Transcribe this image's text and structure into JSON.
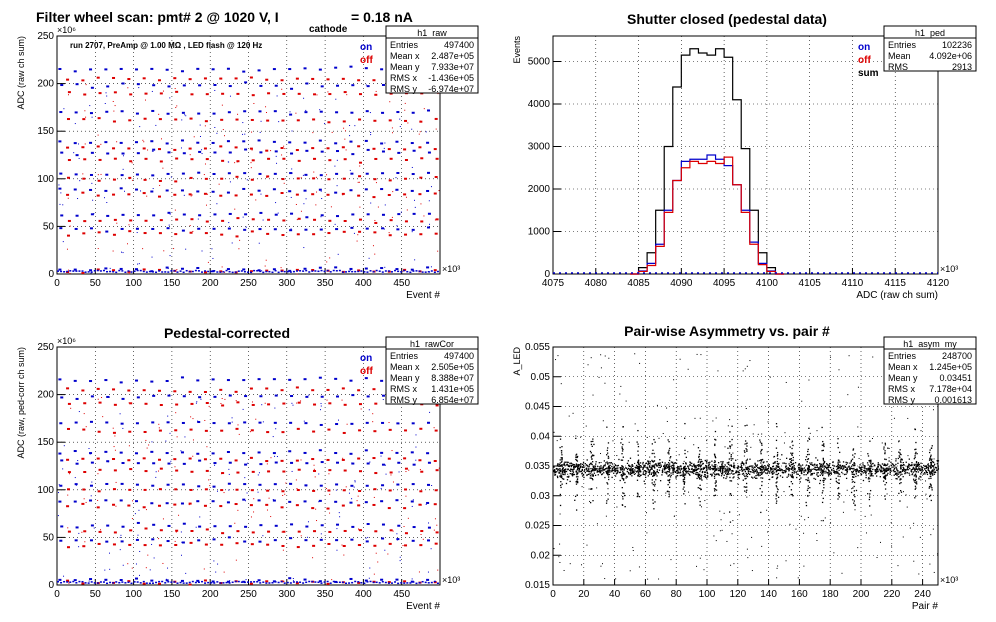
{
  "header": {
    "title_main": "Filter wheel scan: pmt#   2 @  1020 V, I",
    "title_sub": "cathode",
    "title_end": "= 0.18 nA",
    "run_info": "run 2707, PreAmp @ 1.00 MΩ , LED flash @  120 Hz"
  },
  "chart_data": [
    {
      "id": "raw",
      "type": "scatter",
      "title": "",
      "stat_box": {
        "name": "h1_raw",
        "rows": [
          [
            "Entries",
            "497400"
          ],
          [
            "Mean x",
            "2.487e+05"
          ],
          [
            "Mean y",
            "7.933e+07"
          ],
          [
            "RMS x",
            "-1.436e+05"
          ],
          [
            "RMS y",
            "-6.974e+07"
          ]
        ]
      },
      "legend": [
        {
          "name": "on",
          "color": "#0000cc"
        },
        {
          "name": "off",
          "color": "#dd0000"
        }
      ],
      "legend_position": "top-right",
      "xlabel": "Event #",
      "ylabel": "ADC (raw ch sum)",
      "x_multiplier": "×10³",
      "y_multiplier": "×10⁶",
      "xlim": [
        0,
        500000
      ],
      "ylim": [
        0,
        250000000
      ],
      "xticks": [
        0,
        50,
        100,
        150,
        200,
        250,
        300,
        350,
        400,
        450
      ],
      "yticks": [
        0,
        50,
        100,
        150,
        200,
        250
      ],
      "levels_on": [
        5,
        47,
        62,
        88,
        105,
        128,
        139,
        170,
        198,
        215
      ],
      "levels_off": [
        3,
        42,
        56,
        83,
        100,
        120,
        132,
        162,
        190,
        205
      ],
      "block_period": 20000,
      "grid": true
    },
    {
      "id": "ped",
      "type": "line",
      "title": "Shutter closed (pedestal data)",
      "stat_box": {
        "name": "h1_ped",
        "rows": [
          [
            "Entries",
            "102236"
          ],
          [
            "Mean",
            "4.092e+06"
          ],
          [
            "RMS",
            "2913"
          ]
        ]
      },
      "legend": [
        {
          "name": "on",
          "color": "#0000cc"
        },
        {
          "name": "off",
          "color": "#dd0000"
        },
        {
          "name": "sum",
          "color": "#000000"
        }
      ],
      "legend_position": "top-right",
      "xlabel": "ADC (raw ch sum)",
      "ylabel": "Events",
      "x_multiplier": "×10³",
      "xlim": [
        4075,
        4120
      ],
      "ylim": [
        0,
        5600
      ],
      "xticks": [
        4075,
        4080,
        4085,
        4090,
        4095,
        4100,
        4105,
        4110,
        4115,
        4120
      ],
      "yticks": [
        0,
        1000,
        2000,
        3000,
        4000,
        5000
      ],
      "series": [
        {
          "name": "sum",
          "color": "#000000",
          "x": [
            4084,
            4085,
            4086,
            4087,
            4088,
            4089,
            4090,
            4091,
            4092,
            4093,
            4094,
            4095,
            4096,
            4097,
            4098,
            4099,
            4100,
            4101
          ],
          "y": [
            0,
            150,
            500,
            1500,
            3000,
            4400,
            5150,
            5300,
            5200,
            5150,
            5300,
            5100,
            4100,
            2950,
            1500,
            500,
            150,
            0
          ]
        },
        {
          "name": "on",
          "color": "#0000cc",
          "x": [
            4084,
            4085,
            4086,
            4087,
            4088,
            4089,
            4090,
            4091,
            4092,
            4093,
            4094,
            4095,
            4096,
            4097,
            4098,
            4099,
            4100,
            4101
          ],
          "y": [
            0,
            70,
            250,
            700,
            1500,
            2200,
            2650,
            2700,
            2700,
            2800,
            2700,
            2550,
            2100,
            1500,
            750,
            250,
            70,
            0
          ]
        },
        {
          "name": "off",
          "color": "#dd0000",
          "x": [
            4084,
            4085,
            4086,
            4087,
            4088,
            4089,
            4090,
            4091,
            4092,
            4093,
            4094,
            4095,
            4096,
            4097,
            4098,
            4099,
            4100,
            4101
          ],
          "y": [
            0,
            60,
            200,
            650,
            1450,
            2200,
            2500,
            2650,
            2600,
            2650,
            2600,
            2750,
            2100,
            1450,
            700,
            220,
            60,
            0
          ]
        }
      ],
      "grid": true
    },
    {
      "id": "rawcor",
      "type": "scatter",
      "title": "Pedestal-corrected",
      "stat_box": {
        "name": "h1_rawCor",
        "rows": [
          [
            "Entries",
            "497400"
          ],
          [
            "Mean x",
            "2.505e+05"
          ],
          [
            "Mean y",
            "8.388e+07"
          ],
          [
            "RMS x",
            "1.431e+05"
          ],
          [
            "RMS y",
            "6.854e+07"
          ]
        ]
      },
      "legend": [
        {
          "name": "on",
          "color": "#0000cc"
        },
        {
          "name": "off",
          "color": "#dd0000"
        }
      ],
      "legend_position": "top-right",
      "xlabel": "Event #",
      "ylabel": "ADC (raw, ped-corr ch sum)",
      "x_multiplier": "×10³",
      "y_multiplier": "×10⁶",
      "xlim": [
        0,
        500000
      ],
      "ylim": [
        0,
        250000000
      ],
      "xticks": [
        0,
        50,
        100,
        150,
        200,
        250,
        300,
        350,
        400,
        450
      ],
      "yticks": [
        0,
        50,
        100,
        150,
        200,
        250
      ],
      "levels_on": [
        5,
        47,
        62,
        88,
        105,
        128,
        139,
        170,
        198,
        215
      ],
      "levels_off": [
        3,
        42,
        56,
        83,
        100,
        120,
        132,
        162,
        190,
        205
      ],
      "block_period": 20000,
      "grid": true
    },
    {
      "id": "asym",
      "type": "scatter",
      "title": "Pair-wise Asymmetry vs. pair #",
      "stat_box": {
        "name": "h1_asym_my",
        "rows": [
          [
            "Entries",
            "248700"
          ],
          [
            "Mean x",
            "1.245e+05"
          ],
          [
            "Mean y",
            "0.03451"
          ],
          [
            "RMS x",
            "7.178e+04"
          ],
          [
            "RMS y",
            "0.001613"
          ]
        ]
      },
      "xlabel": "Pair #",
      "ylabel": "A_LED",
      "x_multiplier": "×10³",
      "xlim": [
        0,
        250000
      ],
      "ylim": [
        0.015,
        0.055
      ],
      "xticks": [
        0,
        20,
        40,
        60,
        80,
        100,
        120,
        140,
        160,
        180,
        200,
        220,
        240
      ],
      "yticks": [
        0.015,
        0.02,
        0.025,
        0.03,
        0.035,
        0.04,
        0.045,
        0.05,
        0.055
      ],
      "band_center": 0.0345,
      "spike_period": 10000,
      "grid": true
    }
  ]
}
